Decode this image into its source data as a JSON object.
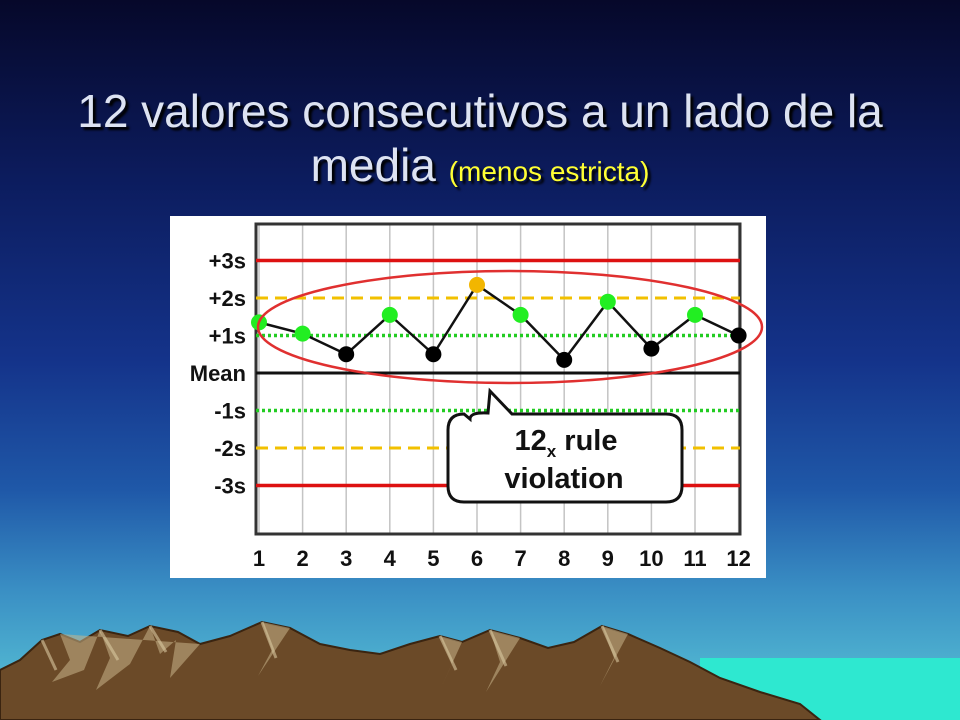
{
  "slide": {
    "title_main": "12 valores consecutivos a un lado de la media",
    "title_qualifier": "(menos estricta)"
  },
  "colors": {
    "in_rule_point": "#22ee22",
    "warning_point": "#f2b600",
    "normal_point": "#000000",
    "control_limit_3s": "#dd1111",
    "warning_limit_2s": "#f2c000",
    "limit_1s": "#22cc22",
    "violation_ellipse": "#e03030"
  },
  "chart_data": {
    "type": "line",
    "x": [
      1,
      2,
      3,
      4,
      5,
      6,
      7,
      8,
      9,
      10,
      11,
      12
    ],
    "y": [
      1.35,
      1.05,
      0.5,
      1.55,
      0.5,
      2.35,
      1.55,
      0.35,
      1.9,
      0.65,
      1.55,
      1.0
    ],
    "point_colors": [
      "green",
      "green",
      "black",
      "green",
      "black",
      "yellow",
      "green",
      "black",
      "green",
      "black",
      "green",
      "black"
    ],
    "ylim": [
      -3.6,
      3.5
    ],
    "y_ticks": [
      {
        "value": 3,
        "label": "+3s"
      },
      {
        "value": 2,
        "label": "+2s"
      },
      {
        "value": 1,
        "label": "+1s"
      },
      {
        "value": 0,
        "label": "Mean"
      },
      {
        "value": -1,
        "label": "-1s"
      },
      {
        "value": -2,
        "label": "-2s"
      },
      {
        "value": -3,
        "label": "-3s"
      }
    ],
    "x_tick_labels": [
      "1",
      "2",
      "3",
      "4",
      "5",
      "6",
      "7",
      "8",
      "9",
      "10",
      "11",
      "12"
    ],
    "grid": true,
    "annotation": {
      "main": "12",
      "subscript": "x",
      "line1_rest": " rule",
      "line2": "violation"
    }
  }
}
